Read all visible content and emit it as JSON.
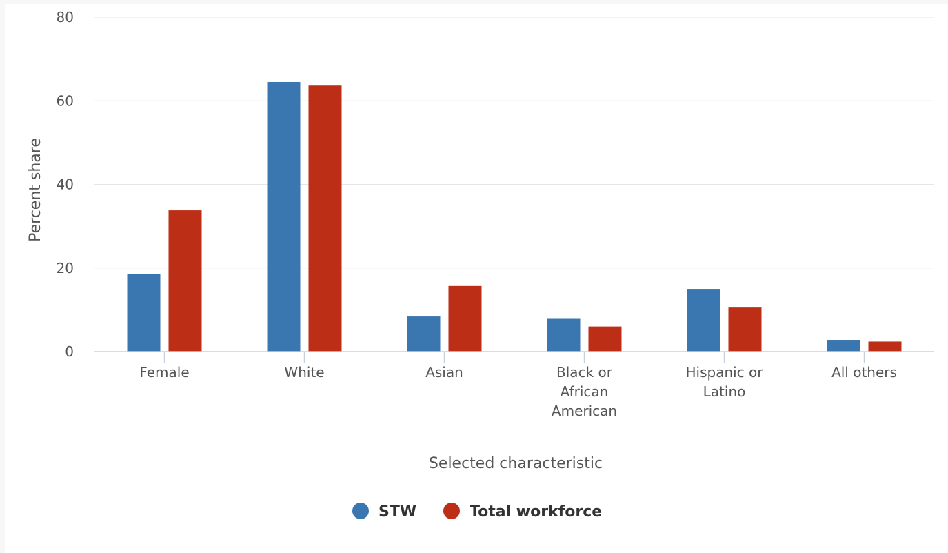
{
  "chart_data": {
    "type": "bar",
    "categories": [
      [
        "Female"
      ],
      [
        "White"
      ],
      [
        "Asian"
      ],
      [
        "Black or",
        "African",
        "American"
      ],
      [
        "Hispanic or",
        "Latino"
      ],
      [
        "All others"
      ]
    ],
    "series": [
      {
        "name": "STW",
        "color": "#3a77b0",
        "values": [
          18.6,
          64.5,
          8.4,
          8.0,
          15.0,
          2.8
        ]
      },
      {
        "name": "Total workforce",
        "color": "#bd2e16",
        "values": [
          33.8,
          63.8,
          15.7,
          6.0,
          10.7,
          2.4
        ]
      }
    ],
    "xlabel": "Selected characteristic",
    "ylabel": "Percent share",
    "ylim": [
      0,
      80
    ],
    "yticks": [
      0,
      20,
      40,
      60,
      80
    ],
    "grid": true,
    "legend_position": "bottom-center"
  }
}
